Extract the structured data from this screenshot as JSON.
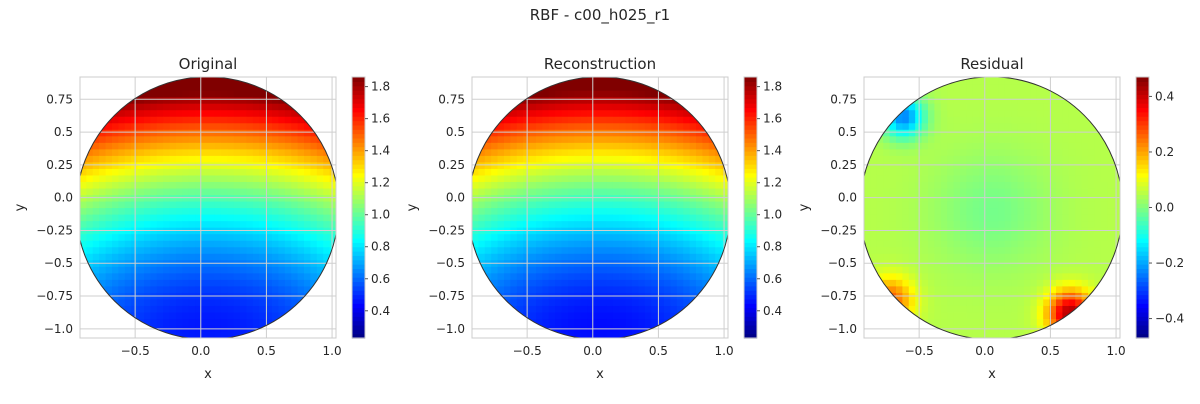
{
  "figure": {
    "title": "RBF - c00_h025_r1"
  },
  "chart_data": [
    {
      "type": "heatmap",
      "title": "Original",
      "xlabel": "x",
      "ylabel": "y",
      "xlim": [
        -0.92,
        1.03
      ],
      "ylim": [
        -1.07,
        0.92
      ],
      "xticks": [
        -0.5,
        0.0,
        0.5,
        1.0
      ],
      "yticks": [
        0.75,
        0.5,
        0.25,
        0.0,
        -0.25,
        -0.5,
        -0.75,
        -1.0
      ],
      "grid": true,
      "domain": {
        "shape": "circle",
        "center": [
          0.05,
          -0.08
        ],
        "radius": 1.0
      },
      "colormap": "jet",
      "colorbar": {
        "range": [
          0.23,
          1.86
        ],
        "ticks": [
          1.8,
          1.6,
          1.4,
          1.2,
          1.0,
          0.8,
          0.6,
          0.4
        ]
      },
      "field": {
        "kind": "gradient",
        "low": 0.3,
        "high": 1.84
      }
    },
    {
      "type": "heatmap",
      "title": "Reconstruction",
      "xlabel": "x",
      "ylabel": "y",
      "xlim": [
        -0.92,
        1.03
      ],
      "ylim": [
        -1.07,
        0.92
      ],
      "xticks": [
        -0.5,
        0.0,
        0.5,
        1.0
      ],
      "yticks": [
        0.75,
        0.5,
        0.25,
        0.0,
        -0.25,
        -0.5,
        -0.75,
        -1.0
      ],
      "grid": true,
      "domain": {
        "shape": "circle",
        "center": [
          0.05,
          -0.08
        ],
        "radius": 1.0
      },
      "colormap": "jet",
      "colorbar": {
        "range": [
          0.23,
          1.86
        ],
        "ticks": [
          1.8,
          1.6,
          1.4,
          1.2,
          1.0,
          0.8,
          0.6,
          0.4
        ]
      },
      "field": {
        "kind": "gradient",
        "low": 0.28,
        "high": 1.82
      }
    },
    {
      "type": "heatmap",
      "title": "Residual",
      "xlabel": "x",
      "ylabel": "y",
      "xlim": [
        -0.92,
        1.03
      ],
      "ylim": [
        -1.07,
        0.92
      ],
      "xticks": [
        -0.5,
        0.0,
        0.5,
        1.0
      ],
      "yticks": [
        0.75,
        0.5,
        0.25,
        0.0,
        -0.25,
        -0.5,
        -0.75,
        -1.0
      ],
      "grid": true,
      "domain": {
        "shape": "circle",
        "center": [
          0.05,
          -0.08
        ],
        "radius": 1.0
      },
      "colormap": "jet",
      "colorbar": {
        "range": [
          -0.47,
          0.47
        ],
        "ticks": [
          0.4,
          0.2,
          0.0,
          -0.2,
          -0.4
        ]
      },
      "field": {
        "kind": "residual",
        "base": 0.05
      }
    }
  ]
}
